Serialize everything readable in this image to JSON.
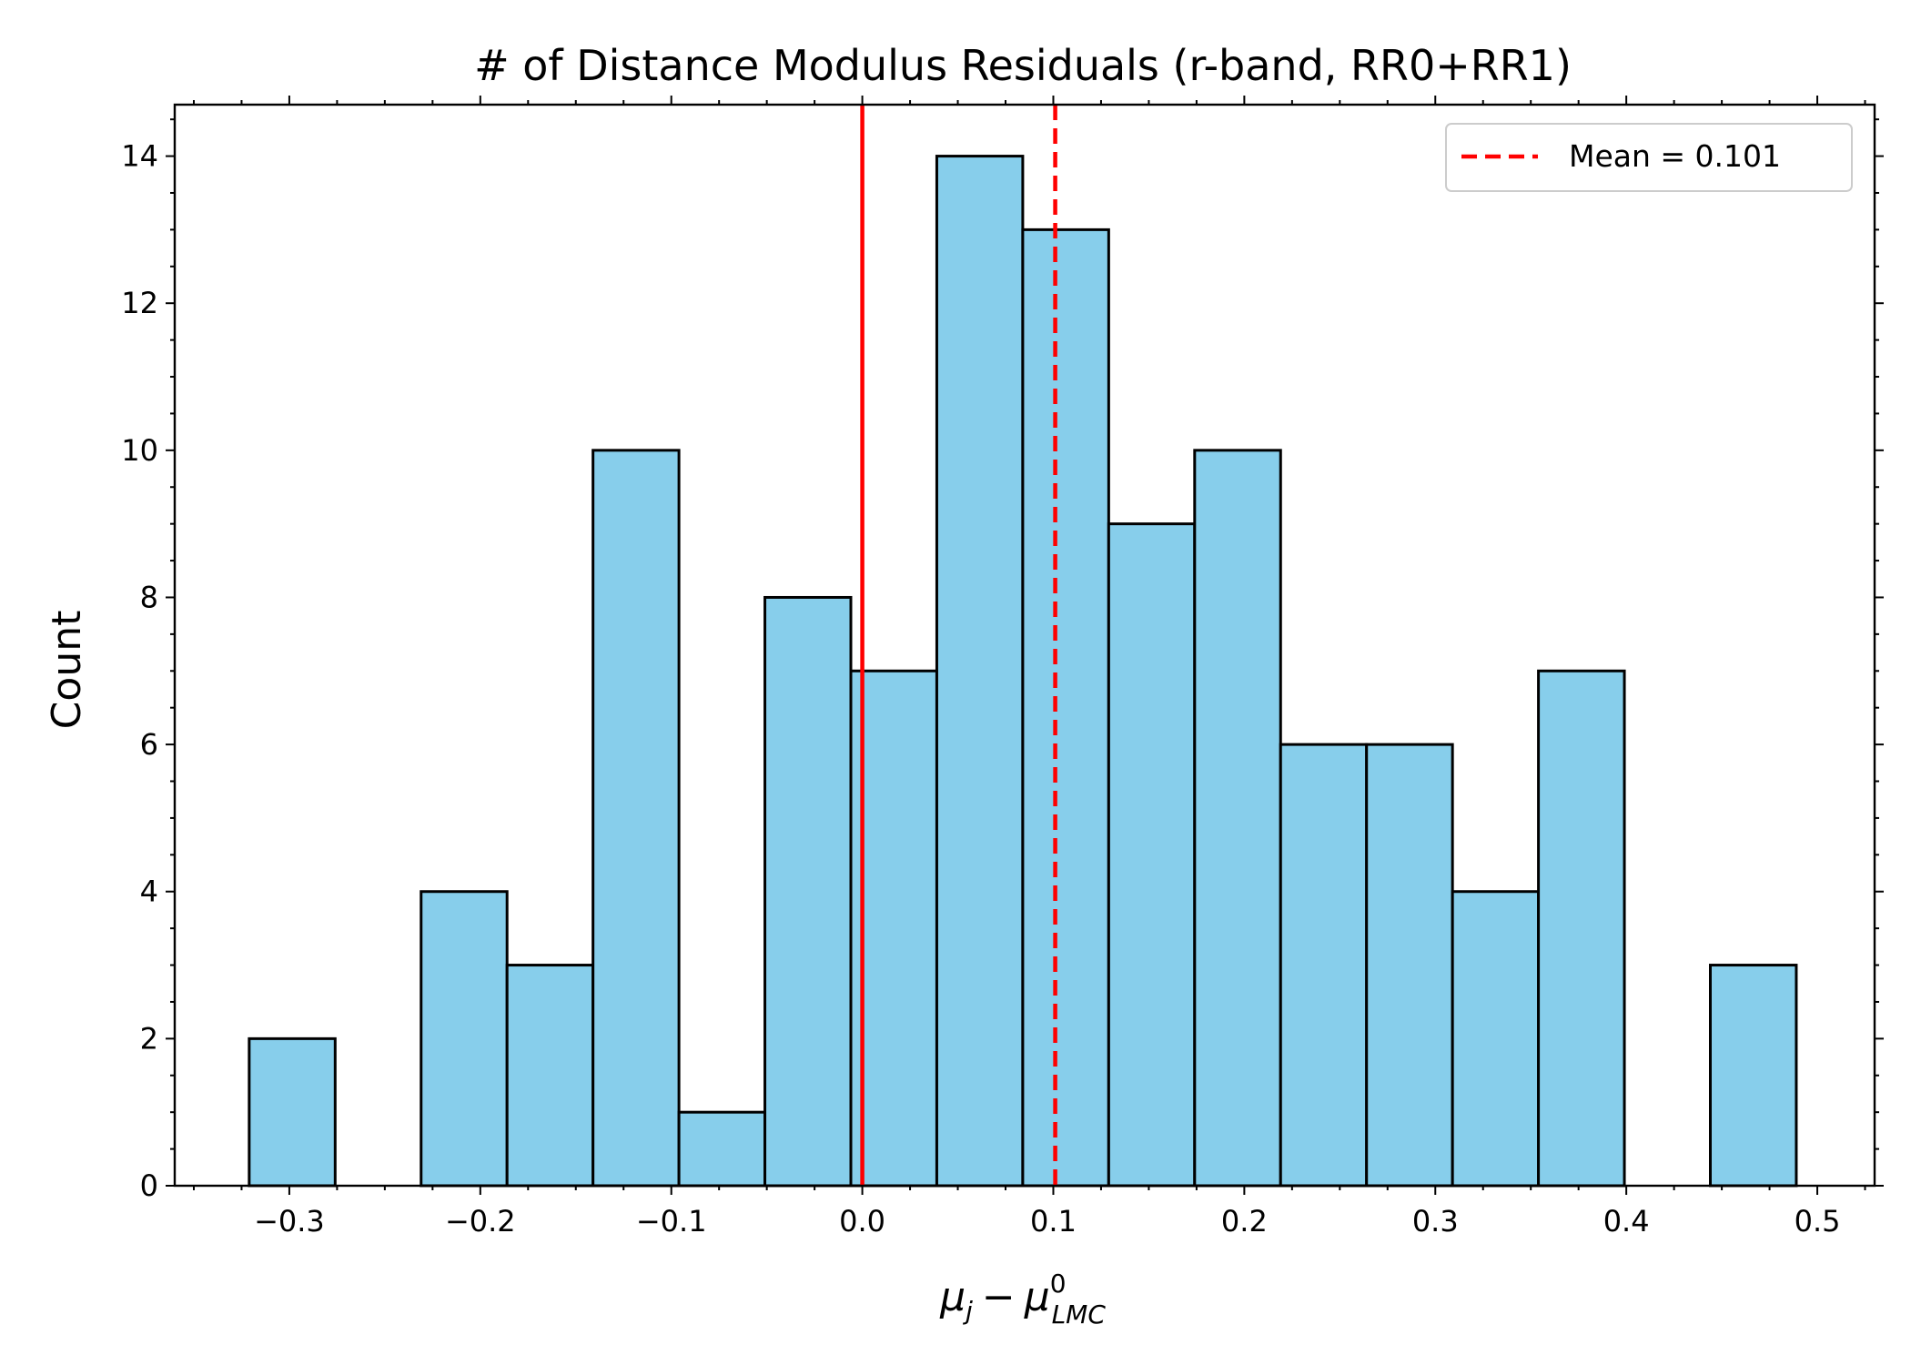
{
  "chart_data": {
    "type": "bar",
    "title": "# of Distance Modulus Residuals (r-band, RR0+RR1)",
    "ylabel": "Count",
    "xlabel": {
      "var": "μ",
      "sub_j": "j",
      "minus": "−",
      "sup": "0",
      "sub_lmc": "LMC"
    },
    "xlim": [
      -0.36,
      0.53
    ],
    "ylim": [
      0,
      14.7
    ],
    "bin_edges": [
      -0.321,
      -0.276,
      -0.231,
      -0.186,
      -0.141,
      -0.096,
      -0.051,
      -0.006,
      0.039,
      0.084,
      0.129,
      0.174,
      0.219,
      0.264,
      0.309,
      0.354,
      0.399,
      0.444,
      0.489
    ],
    "counts": [
      2,
      0,
      4,
      3,
      10,
      1,
      8,
      7,
      14,
      13,
      9,
      10,
      6,
      6,
      4,
      7,
      0,
      3
    ],
    "x_ticks": [
      -0.3,
      -0.2,
      -0.1,
      0.0,
      0.1,
      0.2,
      0.3,
      0.4,
      0.5
    ],
    "x_tick_labels": [
      "−0.3",
      "−0.2",
      "−0.1",
      "0.0",
      "0.1",
      "0.2",
      "0.3",
      "0.4",
      "0.5"
    ],
    "y_ticks": [
      0,
      2,
      4,
      6,
      8,
      10,
      12,
      14
    ],
    "y_tick_labels": [
      "0",
      "2",
      "4",
      "6",
      "8",
      "10",
      "12",
      "14"
    ],
    "reference_lines": [
      {
        "x": 0.0,
        "style": "solid",
        "color": "#ff0000"
      },
      {
        "x": 0.101,
        "style": "dashed",
        "color": "#ff0000",
        "label": "Mean = 0.101"
      }
    ],
    "legend": {
      "position": "top-right",
      "entries": [
        "Mean = 0.101"
      ]
    },
    "grid": false,
    "colors": {
      "bar_fill": "#87ceeb",
      "bar_edge": "#000000",
      "line": "#ff0000"
    }
  }
}
